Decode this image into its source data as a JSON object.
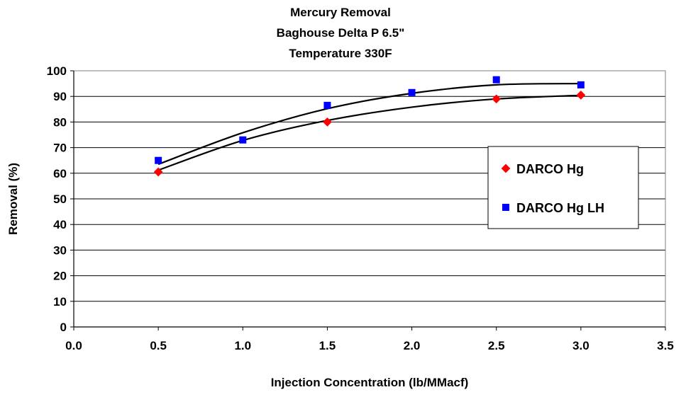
{
  "chart_data": {
    "type": "scatter",
    "title_lines": [
      "Mercury Removal",
      "Baghouse Delta P 6.5\"",
      "Temperature 330F"
    ],
    "xlabel": "Injection Concentration (lb/MMacf)",
    "ylabel": "Removal (%)",
    "xlim": [
      0,
      3.5
    ],
    "ylim": [
      0,
      100
    ],
    "x_ticks": [
      "0.0",
      "0.5",
      "1.0",
      "1.5",
      "2.0",
      "2.5",
      "3.0",
      "3.5"
    ],
    "y_ticks": [
      "0",
      "10",
      "20",
      "30",
      "40",
      "50",
      "60",
      "70",
      "80",
      "90",
      "100"
    ],
    "grid": "horizontal",
    "legend_position": "right",
    "series": [
      {
        "name": "DARCO Hg",
        "marker": "diamond",
        "color": "#ff0000",
        "x": [
          0.5,
          1.0,
          1.5,
          2.0,
          2.5,
          3.0
        ],
        "y": [
          60.5,
          null,
          80,
          null,
          89,
          90.5
        ],
        "trend": {
          "x": [
            0.5,
            1.0,
            1.5,
            2.0,
            2.5,
            3.0
          ],
          "y": [
            61.2,
            72.8,
            80.6,
            85.8,
            89.0,
            90.4
          ]
        }
      },
      {
        "name": "DARCO Hg LH",
        "marker": "square",
        "color": "#0000ff",
        "x": [
          0.5,
          1.0,
          1.5,
          2.0,
          2.5,
          3.0
        ],
        "y": [
          65,
          73,
          86.5,
          91.5,
          96.5,
          94.5
        ],
        "trend": {
          "x": [
            0.5,
            1.0,
            1.5,
            2.0,
            2.5,
            3.0
          ],
          "y": [
            63.5,
            75.8,
            85.2,
            91.2,
            94.5,
            95.0
          ]
        }
      }
    ]
  }
}
